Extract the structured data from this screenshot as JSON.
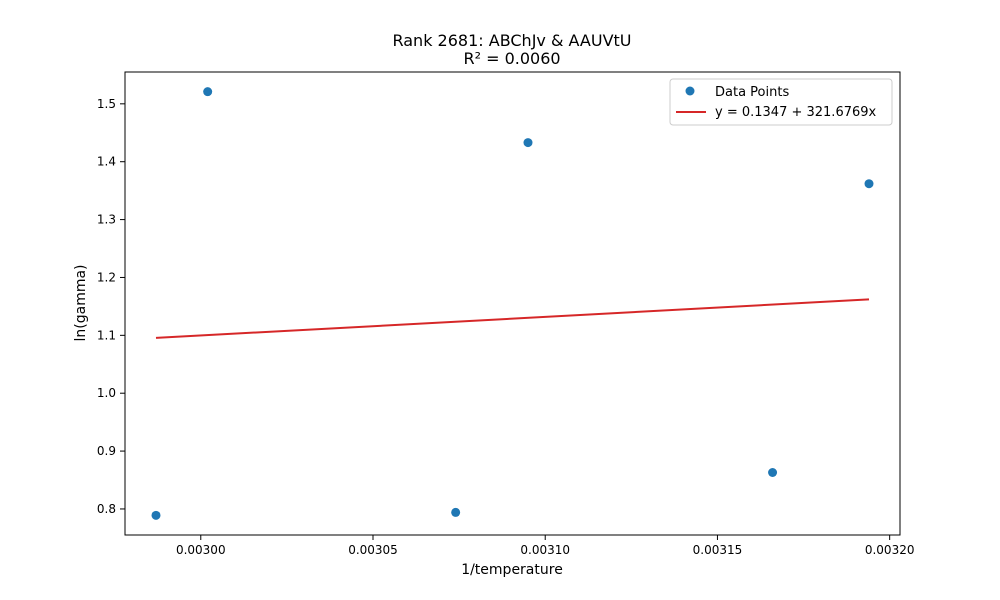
{
  "chart_data": {
    "type": "scatter",
    "title": "Rank 2681: ABChJv & AAUVtU",
    "subtitle": "R² = 0.0060",
    "xlabel": "1/temperature",
    "ylabel": "ln(gamma)",
    "xlim": [
      0.002978,
      0.003203
    ],
    "ylim": [
      0.755,
      1.555
    ],
    "x_ticks": [
      0.003,
      0.00305,
      0.0031,
      0.00315,
      0.0032
    ],
    "x_tick_labels": [
      "0.00300",
      "0.00305",
      "0.00310",
      "0.00315",
      "0.00320"
    ],
    "y_ticks": [
      0.8,
      0.9,
      1.0,
      1.1,
      1.2,
      1.3,
      1.4,
      1.5
    ],
    "y_tick_labels": [
      "0.8",
      "0.9",
      "1.0",
      "1.1",
      "1.2",
      "1.3",
      "1.4",
      "1.5"
    ],
    "grid": false,
    "legend_position": "top-right",
    "series": [
      {
        "name": "Data Points",
        "kind": "scatter",
        "color": "#1f77b4",
        "x": [
          0.002987,
          0.003002,
          0.003074,
          0.003095,
          0.003166,
          0.003194
        ],
        "y": [
          0.789,
          1.521,
          0.794,
          1.433,
          0.863,
          1.362
        ]
      },
      {
        "name": "y = 0.1347 + 321.6769x",
        "kind": "line",
        "color": "#d62728",
        "intercept": 0.1347,
        "slope": 321.6769,
        "x_range": [
          0.002987,
          0.003194
        ]
      }
    ]
  }
}
